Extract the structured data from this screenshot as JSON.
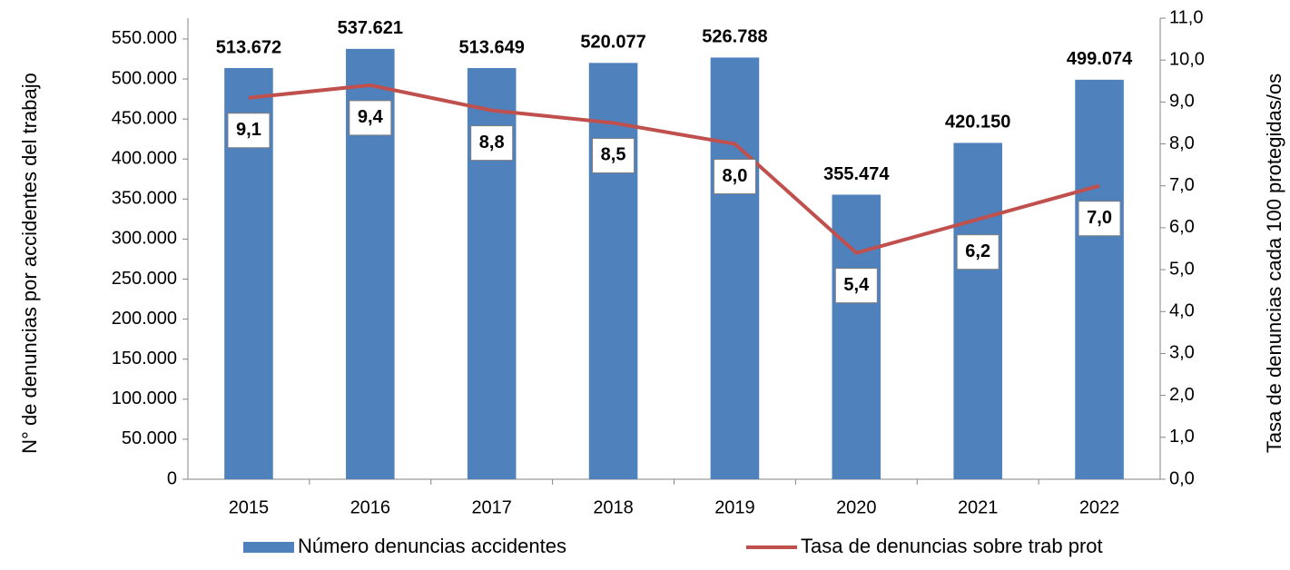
{
  "chart_data": {
    "type": "bar+line",
    "categories": [
      "2015",
      "2016",
      "2017",
      "2018",
      "2019",
      "2020",
      "2021",
      "2022"
    ],
    "y_label": "N° de denuncias por accidentes del trabajo",
    "y2_label": "Tasa de denuncias cada 100 protegidas/os",
    "series": [
      {
        "name": "Número denuncias accidentes",
        "type": "bar",
        "color": "#4f81bd",
        "values": [
          513672,
          537621,
          513649,
          520077,
          526788,
          355474,
          420150,
          499074
        ],
        "value_labels": [
          "513.672",
          "537.621",
          "513.649",
          "520.077",
          "526.788",
          "355.474",
          "420.150",
          "499.074"
        ]
      },
      {
        "name": "Tasa de denuncias sobre trab prot",
        "type": "line",
        "axis": "y2",
        "color": "#c0504d",
        "values": [
          9.1,
          9.4,
          8.8,
          8.5,
          8.0,
          5.4,
          6.2,
          7.0
        ],
        "value_labels": [
          "9,1",
          "9,4",
          "8,8",
          "8,5",
          "8,0",
          "5,4",
          "6,2",
          "7,0"
        ]
      }
    ],
    "ylim": [
      0,
      576000
    ],
    "yticks": [
      0,
      {
        "value": 50000,
        "label": "50.000"
      },
      {
        "value": 100000,
        "label": "100.000"
      },
      {
        "value": 150000,
        "label": "150.000"
      },
      {
        "value": 200000,
        "label": "200.000"
      },
      {
        "value": 250000,
        "label": "250.000"
      },
      {
        "value": 300000,
        "label": "300.000"
      },
      {
        "value": 350000,
        "label": "350.000"
      },
      {
        "value": 400000,
        "label": "400.000"
      },
      {
        "value": 450000,
        "label": "450.000"
      },
      {
        "value": 500000,
        "label": "500.000"
      },
      {
        "value": 550000,
        "label": "550.000"
      }
    ],
    "y2lim": [
      0,
      11
    ],
    "y2ticks": [
      {
        "value": 0,
        "label": "0,0"
      },
      {
        "value": 1,
        "label": "1,0"
      },
      {
        "value": 2,
        "label": "2,0"
      },
      {
        "value": 3,
        "label": "3,0"
      },
      {
        "value": 4,
        "label": "4,0"
      },
      {
        "value": 5,
        "label": "5,0"
      },
      {
        "value": 6,
        "label": "6,0"
      },
      {
        "value": 7,
        "label": "7,0"
      },
      {
        "value": 8,
        "label": "8,0"
      },
      {
        "value": 9,
        "label": "9,0"
      },
      {
        "value": 10,
        "label": "10,0"
      },
      {
        "value": 11,
        "label": "11,0"
      }
    ],
    "legend": "bottom"
  }
}
